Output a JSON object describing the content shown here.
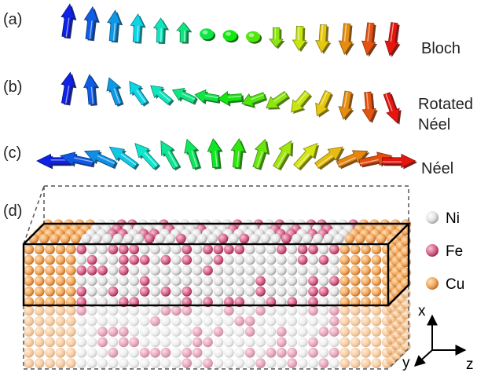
{
  "panels": {
    "a": {
      "label": "(a)",
      "name": "Bloch"
    },
    "b": {
      "label": "(b)",
      "name_line1": "Rotated",
      "name_line2": "Néel"
    },
    "c": {
      "label": "(c)",
      "name": "Néel"
    },
    "d": {
      "label": "(d)"
    }
  },
  "legend": [
    {
      "label": "Ni",
      "color": "#e2e2e2"
    },
    {
      "label": "Fe",
      "color": "#d9648c"
    },
    {
      "label": "Cu",
      "color": "#f2a85c"
    }
  ],
  "axes": {
    "x": "x",
    "y": "y",
    "z": "z"
  },
  "colors": {
    "spin_start": "#1428d2",
    "spin_end": "#e6281e",
    "ni": "#e2e2e2",
    "fe": "#d9648c",
    "cu": "#f2a85c",
    "box_outline": "#000000"
  }
}
